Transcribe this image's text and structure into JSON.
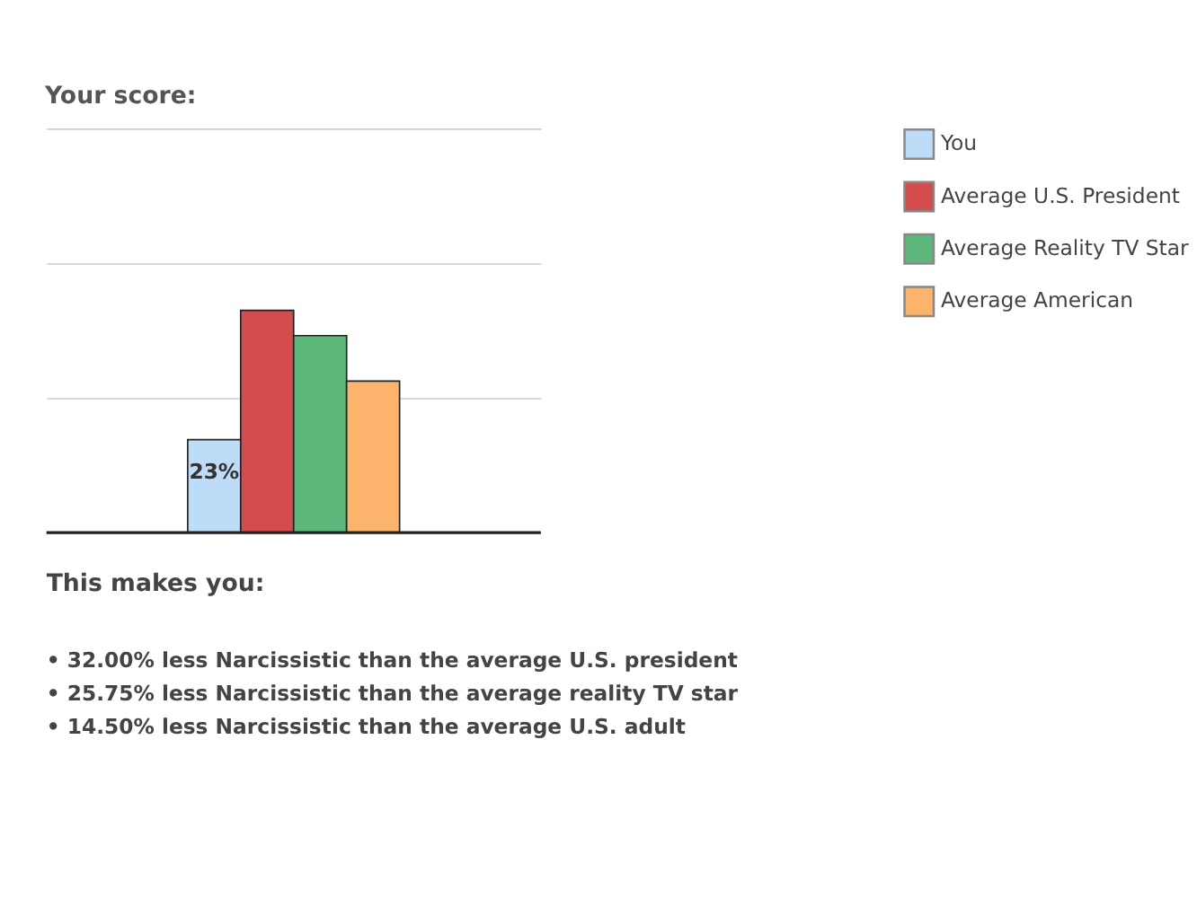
{
  "chart_data": {
    "type": "bar",
    "title": "Your score:",
    "categories": [
      null
    ],
    "series": [
      {
        "name": "You",
        "color": "#bcdcf8",
        "values": [
          23
        ],
        "value_labels": [
          "23%"
        ]
      },
      {
        "name": "Average U.S. President",
        "color": "#d44c4c",
        "values": [
          55
        ]
      },
      {
        "name": "Average Reality TV Star",
        "color": "#5cb87a",
        "values": [
          48.75
        ]
      },
      {
        "name": "Average American",
        "color": "#fcb46c",
        "values": [
          37.5
        ]
      }
    ],
    "ylim": [
      0,
      100
    ],
    "yticks": [
      {
        "value": 33.3,
        "label": null
      },
      {
        "value": 66.7,
        "label": null
      },
      {
        "value": 100,
        "label": null
      }
    ],
    "grid": "y",
    "legend": "right",
    "tick_labels": false,
    "annotations": [
      "This makes you:",
      "• 32.00% less Narcissistic than the average U.S. president",
      "• 25.75% less Narcissistic than the average reality TV star",
      "• 14.50% less Narcissistic than the average U.S. adult"
    ]
  }
}
